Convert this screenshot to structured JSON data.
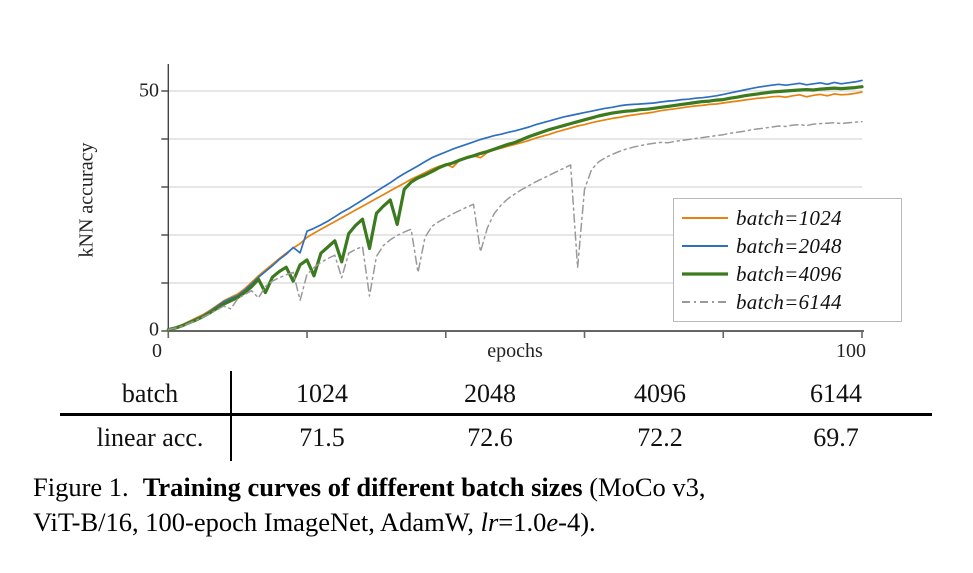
{
  "chart_data": {
    "type": "line",
    "title": "",
    "xlabel": "epochs",
    "ylabel": "kNN accuracy",
    "xlim": [
      0,
      100
    ],
    "ylim": [
      0,
      56
    ],
    "xticks": [
      0,
      20,
      40,
      60,
      80,
      100
    ],
    "xtick_labels": [
      "0",
      "",
      "",
      "",
      "",
      "100"
    ],
    "yticks": [
      0,
      10,
      20,
      30,
      40,
      50
    ],
    "ytick_labels": [
      "0",
      "",
      "",
      "",
      "",
      "50"
    ],
    "grid": "horizontal",
    "legend_position": "center-right",
    "x_range": {
      "start": 0,
      "end": 100,
      "step": 1
    },
    "axis_labels": {
      "x_min": "0",
      "x_max": "100",
      "y_min": "0",
      "y_max": "50"
    },
    "colors": {
      "grid": "#d8d8d8",
      "axis": "#666666",
      "spine": "#444444"
    },
    "series": [
      {
        "name": "batch-1024",
        "label": "batch=1024",
        "color": "#e8820e",
        "width": 1.7,
        "dash": "none",
        "values": [
          0.3,
          0.8,
          1.3,
          2.0,
          2.7,
          3.4,
          4.3,
          5.3,
          6.3,
          7.0,
          7.7,
          8.8,
          10.1,
          11.5,
          12.7,
          13.9,
          15.1,
          16.2,
          17.3,
          18.2,
          19.5,
          20.4,
          21.2,
          22.0,
          22.8,
          23.6,
          24.4,
          25.2,
          26.0,
          26.8,
          27.6,
          28.4,
          29.2,
          30.0,
          30.8,
          31.6,
          32.3,
          33.0,
          33.7,
          34.3,
          34.8,
          34.1,
          35.6,
          36.1,
          36.5,
          36.1,
          37.2,
          37.7,
          38.1,
          38.5,
          38.9,
          39.3,
          39.7,
          40.2,
          40.6,
          41.0,
          41.5,
          41.9,
          42.3,
          42.7,
          43.0,
          43.4,
          43.7,
          44.0,
          44.3,
          44.5,
          44.8,
          45.0,
          45.2,
          45.4,
          45.6,
          45.9,
          46.1,
          46.3,
          46.5,
          46.7,
          46.9,
          47.0,
          47.2,
          47.3,
          47.5,
          47.7,
          47.9,
          48.1,
          48.3,
          48.5,
          48.6,
          48.8,
          48.9,
          48.7,
          49.0,
          49.2,
          48.8,
          49.1,
          49.3,
          49.0,
          49.4,
          49.2,
          49.3,
          49.5,
          49.8
        ]
      },
      {
        "name": "batch-2048",
        "label": "batch=2048",
        "color": "#2e6fbf",
        "width": 1.7,
        "dash": "none",
        "values": [
          0.3,
          0.7,
          1.2,
          1.9,
          2.5,
          3.2,
          4.1,
          5.1,
          6.1,
          6.8,
          7.4,
          8.5,
          9.8,
          11.2,
          12.4,
          13.6,
          14.9,
          16.0,
          17.4,
          16.3,
          20.8,
          21.4,
          22.1,
          22.9,
          23.8,
          24.7,
          25.5,
          26.4,
          27.3,
          28.2,
          29.1,
          30.0,
          30.9,
          31.9,
          32.8,
          33.6,
          34.4,
          35.3,
          36.1,
          36.7,
          37.3,
          37.9,
          38.4,
          38.9,
          39.4,
          39.9,
          40.3,
          40.7,
          41.0,
          41.4,
          41.7,
          42.1,
          42.5,
          43.0,
          43.4,
          43.8,
          44.2,
          44.6,
          44.9,
          45.2,
          45.5,
          45.8,
          46.1,
          46.4,
          46.6,
          46.9,
          47.1,
          47.2,
          47.3,
          47.4,
          47.5,
          47.7,
          47.9,
          48.0,
          48.2,
          48.3,
          48.5,
          48.6,
          48.8,
          49.0,
          49.3,
          49.6,
          49.9,
          50.2,
          50.5,
          50.8,
          51.0,
          51.2,
          51.4,
          51.2,
          51.4,
          51.6,
          51.3,
          51.5,
          51.7,
          51.4,
          51.8,
          51.5,
          51.7,
          51.9,
          52.2
        ]
      },
      {
        "name": "batch-4096",
        "label": "batch=4096",
        "color": "#3c7a1f",
        "width": 3.2,
        "dash": "none",
        "values": [
          0.3,
          0.6,
          1.1,
          1.7,
          2.3,
          3.0,
          3.8,
          4.7,
          5.6,
          6.3,
          7.0,
          8.0,
          9.2,
          10.8,
          8.0,
          11.2,
          12.4,
          13.3,
          10.4,
          13.8,
          14.8,
          11.5,
          16.2,
          17.5,
          18.8,
          14.4,
          20.3,
          22.0,
          23.3,
          17.2,
          24.5,
          26.0,
          27.3,
          22.2,
          29.5,
          31.0,
          31.9,
          32.5,
          33.2,
          34.0,
          34.6,
          35.0,
          35.6,
          36.1,
          36.5,
          37.0,
          37.4,
          37.9,
          38.4,
          38.9,
          39.3,
          39.9,
          40.5,
          41.0,
          41.5,
          42.0,
          42.4,
          42.8,
          43.2,
          43.6,
          44.0,
          44.4,
          44.8,
          45.1,
          45.4,
          45.6,
          45.8,
          45.9,
          46.1,
          46.2,
          46.4,
          46.6,
          46.8,
          47.0,
          47.2,
          47.4,
          47.6,
          47.8,
          47.9,
          48.1,
          48.2,
          48.5,
          48.7,
          49.0,
          49.2,
          49.4,
          49.6,
          49.8,
          49.9,
          50.0,
          50.1,
          50.2,
          50.3,
          50.2,
          50.4,
          50.5,
          50.6,
          50.5,
          50.6,
          50.7,
          50.9
        ]
      },
      {
        "name": "batch-6144",
        "label": "batch=6144",
        "color": "#999999",
        "width": 1.5,
        "dash": "8 4 2 4",
        "values": [
          0.3,
          0.6,
          1.0,
          1.6,
          2.2,
          2.9,
          3.6,
          4.4,
          5.2,
          4.6,
          6.7,
          7.6,
          8.4,
          6.9,
          9.3,
          10.4,
          11.1,
          11.7,
          12.2,
          6.4,
          11.8,
          13.2,
          14.3,
          15.1,
          15.8,
          11.1,
          16.2,
          17.0,
          17.6,
          7.3,
          15.5,
          17.8,
          19.0,
          19.9,
          20.6,
          21.2,
          12.2,
          19.5,
          21.8,
          22.8,
          23.6,
          24.4,
          25.1,
          25.8,
          26.4,
          16.5,
          21.5,
          24.5,
          26.3,
          27.6,
          28.6,
          29.5,
          30.3,
          31.1,
          31.8,
          32.5,
          33.2,
          33.9,
          34.6,
          13.2,
          29.5,
          33.6,
          35.2,
          36.1,
          36.8,
          37.4,
          37.9,
          38.3,
          38.6,
          38.9,
          39.1,
          39.3,
          39.2,
          39.5,
          39.7,
          39.9,
          40.1,
          40.3,
          40.5,
          40.7,
          40.9,
          41.2,
          41.4,
          41.6,
          41.9,
          42.1,
          42.3,
          42.5,
          42.7,
          42.6,
          42.9,
          43.0,
          42.8,
          43.1,
          43.2,
          43.3,
          43.4,
          43.2,
          43.4,
          43.5,
          43.6
        ]
      }
    ]
  },
  "table": {
    "header_row": {
      "label": "batch",
      "values": [
        "1024",
        "2048",
        "4096",
        "6144"
      ]
    },
    "accuracy_row": {
      "label": "linear acc.",
      "values": [
        "71.5",
        "72.6",
        "72.2",
        "69.7"
      ]
    }
  },
  "caption": {
    "figure_label": "Figure 1.",
    "title_bold": "Training curves of different batch sizes",
    "rest_line1": " (MoCo v3,",
    "line2_part1": "ViT-B/16, 100-epoch ImageNet, AdamW, ",
    "lr_italic": "lr",
    "line2_part2": "=1.0",
    "e_italic": "e",
    "line2_part3": "-4)."
  }
}
